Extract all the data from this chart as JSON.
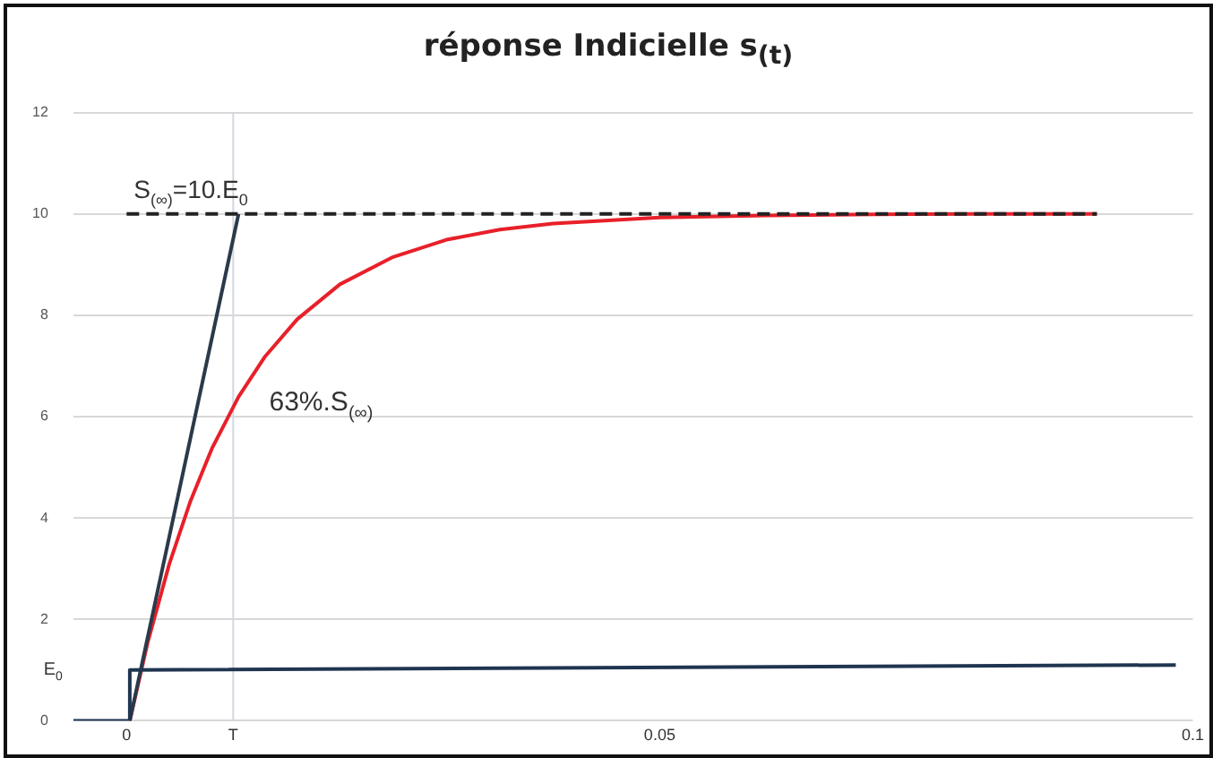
{
  "chart_data": {
    "type": "line",
    "title": "réponse Indicielle s$_{(t)}$",
    "xlim": [
      -0.005,
      0.1
    ],
    "xticks": [
      0,
      {
        "value": 0.01,
        "label": "T"
      },
      0.05,
      {
        "value": 0.1,
        "label": "0.1"
      }
    ],
    "ylim": [
      0,
      12
    ],
    "yticks": [
      0,
      2,
      4,
      6,
      8,
      10,
      12
    ],
    "grid": "y",
    "legend": false,
    "marker": "none",
    "ref_lines": [
      {
        "axis": "x",
        "value": 0.01,
        "color": "#d0d8e0"
      }
    ],
    "series": [
      {
        "color": "#1f3550",
        "line_style": "solid",
        "x": [
          -0.005,
          0.0003,
          0.0003,
          0.0984
        ],
        "values": [
          0,
          0,
          1,
          1.1
        ]
      },
      {
        "color": "#222222",
        "line_style": "dashed",
        "x": [
          0,
          0.091
        ],
        "values": [
          10,
          10
        ]
      },
      {
        "color": "#2a3a4a",
        "line_style": "solid",
        "x": [
          0.0003,
          0.0105
        ],
        "values": [
          0,
          10
        ]
      },
      {
        "color": "#e8202a",
        "line_style": "solid",
        "x": [
          0.0003,
          0.002,
          0.004,
          0.006,
          0.008,
          0.0105,
          0.013,
          0.016,
          0.02,
          0.025,
          0.03,
          0.035,
          0.04,
          0.05,
          0.06,
          0.07,
          0.08,
          0.091
        ],
        "values": [
          0,
          1.56,
          3.09,
          4.34,
          5.37,
          6.39,
          7.19,
          7.92,
          8.61,
          9.15,
          9.49,
          9.69,
          9.81,
          9.93,
          9.97,
          9.99,
          10,
          10
        ]
      }
    ],
    "annotations": [
      {
        "text": "S$_{(∞)}$=10.E$_{0}$",
        "x": 0,
        "y": 10
      },
      "63%.S$_{(∞)}$",
      "E$_{0}$"
    ]
  }
}
